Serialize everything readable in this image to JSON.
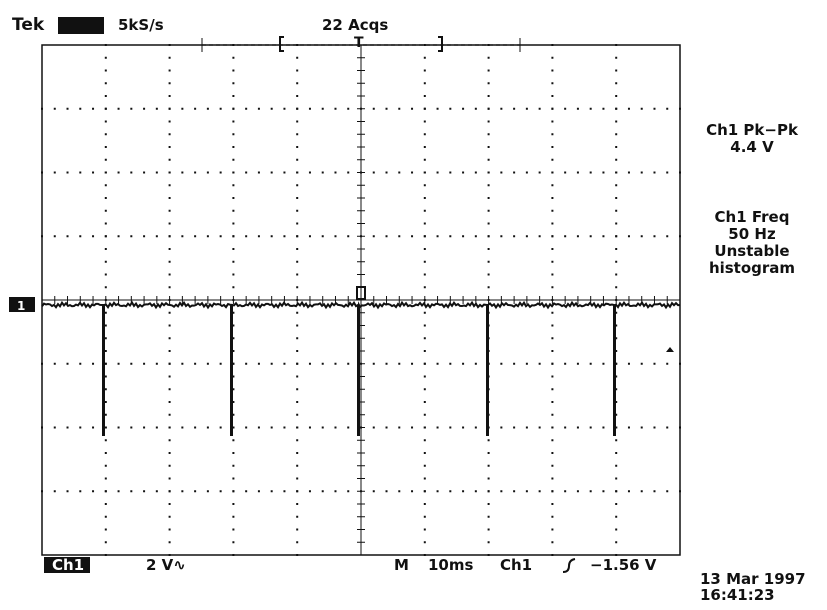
{
  "header": {
    "brand": "Tek",
    "sample_rate": "5kS/s",
    "acquisitions": "22 Acqs",
    "trigger_marker": "T"
  },
  "channel_marker": "1",
  "measurements": [
    {
      "lines": [
        "Ch1 Pk−Pk",
        "4.4 V"
      ]
    },
    {
      "lines": [
        "Ch1 Freq",
        "50 Hz",
        "Unstable",
        "histogram"
      ]
    }
  ],
  "footer": {
    "channel": "Ch1",
    "scale": "2 V∿",
    "timebase_label": "M",
    "timebase": "10ms",
    "trigger_source": "Ch1",
    "trigger_level": "−1.56 V"
  },
  "timestamp": {
    "date": "13 Mar 1997",
    "time": "16:41:23"
  }
}
